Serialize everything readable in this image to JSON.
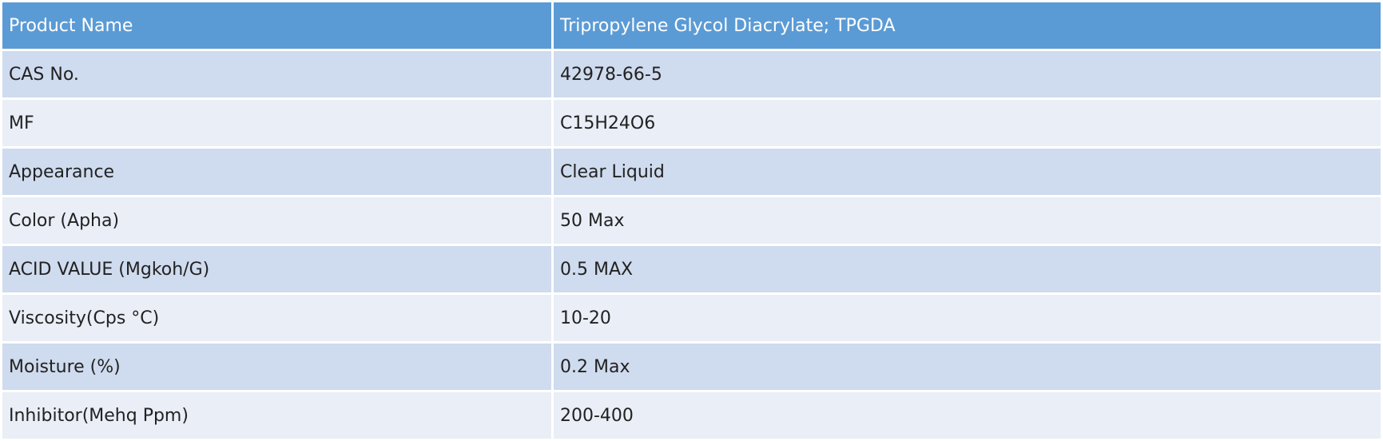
{
  "table": {
    "header": [
      "Product Name",
      "Tripropylene Glycol Diacrylate; TPGDA"
    ],
    "rows": [
      [
        "CAS No.",
        "42978-66-5"
      ],
      [
        "MF",
        "C15H24O6"
      ],
      [
        "Appearance",
        "Clear Liquid"
      ],
      [
        "Color (Apha)",
        "50 Max"
      ],
      [
        "ACID VALUE (Mgkoh/G)",
        "0.5 MAX"
      ],
      [
        "Viscosity(Cps °C)",
        "10-20"
      ],
      [
        "Moisture (%)",
        "0.2 Max"
      ],
      [
        "Inhibitor(Mehq Ppm)",
        "200-400"
      ]
    ]
  }
}
